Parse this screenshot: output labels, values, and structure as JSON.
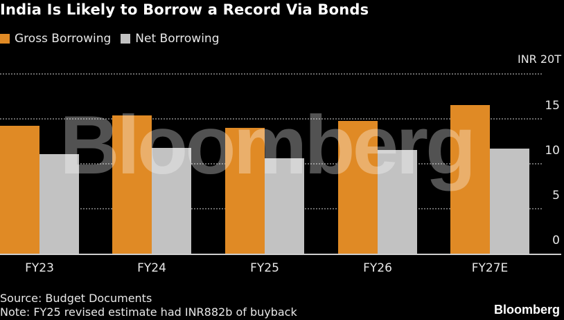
{
  "title": "India Is Likely to Borrow a Record Via Bonds",
  "legend": [
    {
      "label": "Gross Borrowing",
      "color": "#e08a25"
    },
    {
      "label": "Net Borrowing",
      "color": "#c2c2c2"
    }
  ],
  "axis": {
    "unit_label": "INR 20T",
    "ticks": [
      "15",
      "10",
      "5",
      "0"
    ]
  },
  "categories": [
    "FY23",
    "FY24",
    "FY25",
    "FY26",
    "FY27E"
  ],
  "watermark": "Bloomberg",
  "footer": {
    "source": "Source: Budget Documents",
    "note": "Note: FY25 revised estimate had INR882b of buyback",
    "brand": "Bloomberg"
  },
  "chart_data": {
    "type": "bar",
    "title": "India Is Likely to Borrow a Record Via Bonds",
    "categories": [
      "FY23",
      "FY24",
      "FY25",
      "FY26",
      "FY27E"
    ],
    "series": [
      {
        "name": "Gross Borrowing",
        "color": "#e08a25",
        "values": [
          14.2,
          15.4,
          14.0,
          14.8,
          16.5
        ]
      },
      {
        "name": "Net Borrowing",
        "color": "#c2c2c2",
        "values": [
          11.1,
          11.8,
          10.6,
          11.5,
          11.7
        ]
      }
    ],
    "xlabel": "",
    "ylabel": "INR trillion",
    "ylim": [
      0,
      20
    ],
    "yticks": [
      0,
      5,
      10,
      15,
      20
    ],
    "ytick_labels": [
      "0",
      "5",
      "10",
      "15",
      "INR 20T"
    ],
    "grid": true,
    "legend_position": "top-left",
    "y_axis_side": "right",
    "annotations": [
      "Source: Budget Documents",
      "Note: FY25 revised estimate had INR882b of buyback"
    ]
  }
}
